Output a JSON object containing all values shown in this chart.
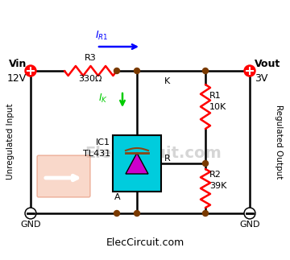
{
  "bg_color": "#ffffff",
  "line_color": "#000000",
  "resistor_color": "#ff0000",
  "node_color": "#7a3a00",
  "vin_color": "#ff0000",
  "vout_color": "#ff0000",
  "arrow_color_blue": "#0000ff",
  "arrow_color_green": "#00cc00",
  "ic_fill": "#00ccdd",
  "triangle_fill": "#cc00cc",
  "title_text": "ElecCircuit.com",
  "vin_label": "Vin",
  "vin_value": "12V",
  "vout_label": "Vout",
  "vout_value": "3V",
  "r3_label": "R3",
  "r3_value": "330Ω",
  "r1_label": "R1",
  "r1_value": "10K",
  "r2_label": "R2",
  "r2_value": "39K",
  "ic1_label": "IC1",
  "ic1_name": "TL431",
  "k_label": "K",
  "a_label": "A",
  "r_label": "R",
  "gnd_label": "GND",
  "unreg_label": "Unregulated Input",
  "reg_label": "Regulated Output",
  "watermark": "ElecCircuit.com"
}
